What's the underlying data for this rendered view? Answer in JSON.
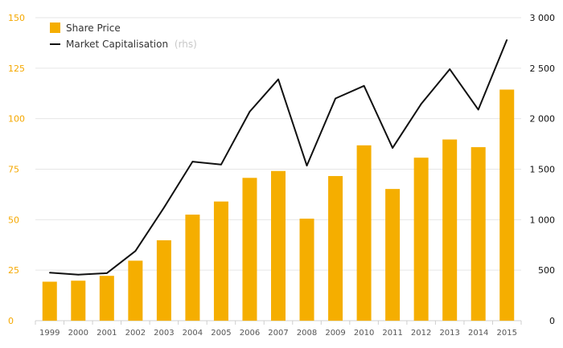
{
  "colors": {
    "bar": "#f5ae00",
    "line": "#111111",
    "grid": "#e6e6e6",
    "left_axis_text": "#f5a800",
    "right_axis_text": "#111111"
  },
  "legend": {
    "bar_label": "Share Price",
    "line_label": "Market Capitalisation",
    "line_suffix": "(rhs)"
  },
  "chart_data": {
    "type": "bar",
    "categories": [
      "1999",
      "2000",
      "2001",
      "2002",
      "2003",
      "2004",
      "2005",
      "2006",
      "2007",
      "2008",
      "2009",
      "2010",
      "2011",
      "2012",
      "2013",
      "2014",
      "2015"
    ],
    "series": [
      {
        "name": "Share Price",
        "type": "bar",
        "axis": "left",
        "values": [
          19.3,
          19.8,
          22.2,
          29.7,
          39.8,
          52.5,
          59.0,
          70.7,
          74.1,
          50.5,
          71.6,
          86.8,
          65.2,
          80.7,
          89.7,
          85.9,
          114.4
        ]
      },
      {
        "name": "Market Capitalisation",
        "type": "line",
        "axis": "right",
        "values": [
          475,
          455,
          470,
          690,
          1120,
          1575,
          1545,
          2070,
          2390,
          1535,
          2200,
          2325,
          1710,
          2145,
          2490,
          2090,
          2780
        ]
      }
    ],
    "ylim_left": [
      0,
      150
    ],
    "ylim_right": [
      0,
      3000
    ],
    "yticks_left": [
      "0",
      "25",
      "50",
      "75",
      "100",
      "125",
      "150"
    ],
    "yticks_right": [
      "0",
      "500",
      "1 000",
      "1 500",
      "2 000",
      "2 500",
      "3 000"
    ],
    "grid": true,
    "legend_position": "top-left"
  }
}
